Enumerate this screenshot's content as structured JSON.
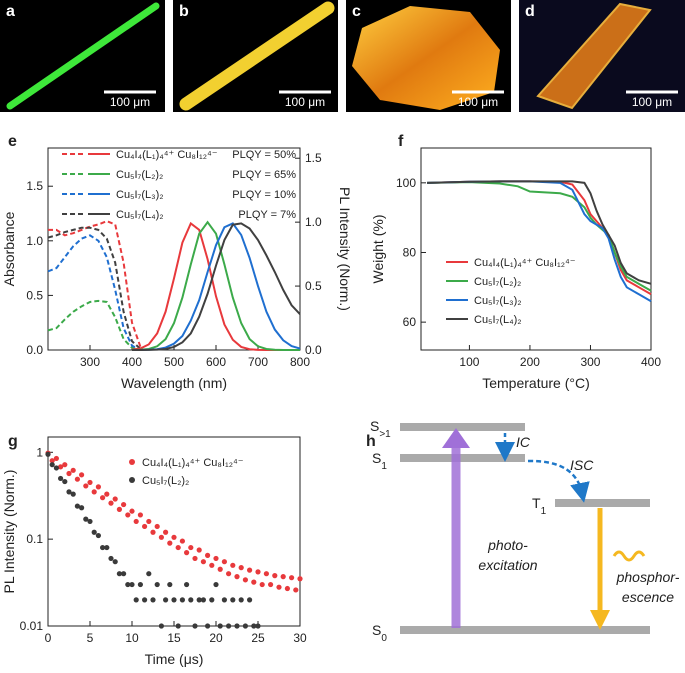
{
  "images": [
    {
      "label": "a",
      "scale_bar": "100 μm"
    },
    {
      "label": "b",
      "scale_bar": "100 μm"
    },
    {
      "label": "c",
      "scale_bar": "100 μm"
    },
    {
      "label": "d",
      "scale_bar": "100 μm"
    }
  ],
  "chart_data": [
    {
      "type": "line",
      "label": "e",
      "xlabel": "Wavelength (nm)",
      "ylabel": "Absorbance",
      "y2label": "PL Intensity (Norm.)",
      "xlim": [
        200,
        800
      ],
      "xticks": [
        300,
        400,
        500,
        600,
        700,
        800
      ],
      "ylim": [
        0,
        1.85
      ],
      "yticks": [
        {
          "value": 0,
          "label": "0.0"
        },
        0.5,
        {
          "value": 1,
          "label": "1.0"
        },
        1.5
      ],
      "y2lim": [
        0,
        1.58
      ],
      "y2ticks": [
        {
          "value": 0,
          "label": "0.0"
        },
        0.5,
        {
          "value": 1,
          "label": "1.0"
        },
        1.5
      ],
      "annotations": [
        "PLQY = 50%",
        "PLQY = 65%",
        "PLQY = 10%",
        "PLQY = 7%"
      ],
      "series": [
        {
          "name": "Cu₄I₄(L₁)₄⁴⁺ Cu₈I₁₂⁴⁻",
          "color": "#e8393c",
          "linestyle": "dashed",
          "x": [
            200,
            220,
            240,
            260,
            280,
            300,
            320,
            340,
            360,
            380,
            400,
            420
          ],
          "values": [
            1.1,
            1.1,
            1.05,
            1.07,
            1.1,
            1.13,
            1.15,
            1.18,
            1.15,
            0.8,
            0.25,
            0.03
          ]
        },
        {
          "name": "Cu₅I₇(L₂)₂",
          "color": "#3caa4a",
          "linestyle": "dashed",
          "x": [
            200,
            220,
            240,
            260,
            280,
            300,
            320,
            340,
            360,
            380,
            400,
            420
          ],
          "values": [
            0.18,
            0.2,
            0.28,
            0.35,
            0.4,
            0.44,
            0.45,
            0.44,
            0.3,
            0.1,
            0.02,
            0.0
          ]
        },
        {
          "name": "Cu₅I₇(L₃)₂",
          "color": "#1f6fd0",
          "linestyle": "dashed",
          "x": [
            200,
            220,
            240,
            260,
            280,
            300,
            320,
            340,
            360,
            380,
            400,
            420
          ],
          "values": [
            0.72,
            0.75,
            0.85,
            0.95,
            1.02,
            1.05,
            1.0,
            0.85,
            0.55,
            0.2,
            0.04,
            0.0
          ]
        },
        {
          "name": "Cu₅I₇(L₄)₂",
          "color": "#404040",
          "linestyle": "dashed",
          "x": [
            200,
            220,
            240,
            260,
            280,
            300,
            320,
            340,
            360,
            380,
            400,
            420
          ],
          "values": [
            1.03,
            1.05,
            1.08,
            1.1,
            1.12,
            1.12,
            1.1,
            1.02,
            0.8,
            0.35,
            0.08,
            0.01
          ]
        },
        {
          "color": "#e8393c",
          "linestyle": "solid",
          "axis": "y2",
          "x": [
            400,
            420,
            440,
            460,
            480,
            500,
            520,
            540,
            560,
            580,
            600,
            620,
            640,
            660,
            680,
            700,
            720,
            740,
            760,
            780,
            800
          ],
          "values": [
            0.003,
            0.012,
            0.044,
            0.13,
            0.3,
            0.56,
            0.84,
            0.99,
            0.94,
            0.71,
            0.42,
            0.2,
            0.08,
            0.024,
            0.006,
            0.001,
            0,
            0,
            0,
            0,
            0
          ]
        },
        {
          "color": "#3caa4a",
          "linestyle": "solid",
          "axis": "y2",
          "x": [
            400,
            420,
            440,
            460,
            480,
            500,
            520,
            540,
            560,
            580,
            600,
            620,
            640,
            660,
            680,
            700,
            720,
            740,
            760,
            780,
            800
          ],
          "values": [
            0,
            0.002,
            0.008,
            0.029,
            0.085,
            0.21,
            0.41,
            0.67,
            0.91,
            1.0,
            0.91,
            0.67,
            0.41,
            0.21,
            0.085,
            0.029,
            0.008,
            0.002,
            0,
            0,
            0
          ]
        },
        {
          "color": "#1f6fd0",
          "linestyle": "solid",
          "axis": "y2",
          "x": [
            400,
            420,
            440,
            460,
            480,
            500,
            520,
            540,
            560,
            580,
            600,
            620,
            640,
            660,
            680,
            700,
            720,
            740,
            760,
            780,
            800
          ],
          "values": [
            0,
            0.0005,
            0.002,
            0.006,
            0.019,
            0.05,
            0.11,
            0.23,
            0.39,
            0.61,
            0.82,
            0.96,
            0.99,
            0.9,
            0.72,
            0.5,
            0.3,
            0.16,
            0.076,
            0.031,
            0.011
          ]
        },
        {
          "color": "#404040",
          "linestyle": "solid",
          "axis": "y2",
          "x": [
            400,
            420,
            440,
            460,
            480,
            500,
            520,
            540,
            560,
            580,
            600,
            620,
            640,
            660,
            680,
            700,
            720,
            740,
            760,
            780,
            800
          ],
          "values": [
            0,
            0,
            0.001,
            0.003,
            0.008,
            0.024,
            0.06,
            0.13,
            0.26,
            0.44,
            0.66,
            0.86,
            0.98,
            0.99,
            0.95,
            0.86,
            0.74,
            0.61,
            0.47,
            0.35,
            0.28
          ]
        }
      ]
    },
    {
      "type": "line",
      "label": "f",
      "xlabel": "Temperature (°C)",
      "ylabel": "Weight (%)",
      "xlim": [
        20,
        400
      ],
      "xticks": [
        100,
        200,
        300,
        400
      ],
      "ylim": [
        52,
        110
      ],
      "yticks": [
        60,
        80,
        100
      ],
      "x": [
        30,
        100,
        150,
        180,
        200,
        250,
        270,
        290,
        300,
        310,
        320,
        330,
        340,
        350,
        360,
        380,
        400
      ],
      "series": [
        {
          "name": "Cu₄I₄(L₁)₄⁴⁺ Cu₈I₁₂⁴⁻",
          "color": "#e8393c",
          "values": [
            100.0,
            100.3,
            100.4,
            100.4,
            100.4,
            100.3,
            99.5,
            95,
            91,
            89,
            87,
            85,
            80,
            75,
            72,
            70,
            68
          ]
        },
        {
          "name": "Cu₅I₇(L₂)₂",
          "color": "#3caa4a",
          "values": [
            100.0,
            100.2,
            99.8,
            99,
            97.5,
            97,
            96,
            93,
            90,
            88,
            86.5,
            85,
            80,
            76,
            73,
            71,
            69
          ]
        },
        {
          "name": "Cu₅I₇(L₃)₂",
          "color": "#1f6fd0",
          "values": [
            100,
            100.3,
            100.4,
            100.4,
            100.4,
            100,
            98,
            91,
            89,
            88,
            87,
            84,
            78,
            73,
            70,
            68,
            66
          ]
        },
        {
          "name": "Cu₅I₇(L₄)₂",
          "color": "#404040",
          "values": [
            100,
            100.3,
            100.4,
            100.4,
            100.4,
            100.4,
            100.4,
            100,
            97,
            92,
            88,
            85,
            82,
            77,
            74,
            72,
            71
          ]
        }
      ]
    },
    {
      "type": "scatter",
      "label": "g",
      "xlabel": "Time (μs)",
      "ylabel": "PL Intensity (Norm.)",
      "yscale": "log",
      "xlim": [
        0,
        30
      ],
      "xticks": [
        0,
        5,
        10,
        15,
        20,
        25,
        30
      ],
      "ylim": [
        0.01,
        1.5
      ],
      "yticks": [
        0.01,
        0.1,
        1
      ],
      "series": [
        {
          "name": "Cu₄I₄(L₁)₄⁴⁺ Cu₈I₁₂⁴⁻",
          "color": "#e8393c",
          "x": [
            0,
            0.5,
            1,
            1.5,
            2,
            2.5,
            3,
            3.5,
            4,
            4.5,
            5,
            5.5,
            6,
            6.5,
            7,
            7.5,
            8,
            8.5,
            9,
            9.5,
            10,
            10.5,
            11,
            11.5,
            12,
            12.5,
            13,
            13.5,
            14,
            14.5,
            15,
            15.5,
            16,
            16.5,
            17,
            17.5,
            18,
            18.5,
            19,
            19.5,
            20,
            20.5,
            21,
            21.5,
            22,
            22.5,
            23,
            23.5,
            24,
            24.5,
            25,
            25.5,
            26,
            26.5,
            27,
            27.5,
            28,
            28.5,
            29,
            29.5,
            30
          ],
          "values": [
            0.98,
            0.8,
            0.85,
            0.68,
            0.72,
            0.57,
            0.62,
            0.49,
            0.55,
            0.41,
            0.45,
            0.35,
            0.4,
            0.3,
            0.33,
            0.26,
            0.29,
            0.22,
            0.25,
            0.19,
            0.21,
            0.16,
            0.19,
            0.14,
            0.16,
            0.12,
            0.14,
            0.105,
            0.12,
            0.09,
            0.105,
            0.08,
            0.095,
            0.07,
            0.08,
            0.06,
            0.075,
            0.055,
            0.065,
            0.05,
            0.06,
            0.045,
            0.055,
            0.04,
            0.05,
            0.037,
            0.047,
            0.034,
            0.044,
            0.032,
            0.042,
            0.03,
            0.04,
            0.03,
            0.038,
            0.028,
            0.037,
            0.027,
            0.036,
            0.026,
            0.035
          ]
        },
        {
          "name": "Cu₅I₇(L₂)₂",
          "color": "#3a3a3a",
          "x": [
            0,
            0.5,
            1,
            1.5,
            2,
            2.5,
            3,
            3.5,
            4,
            4.5,
            5,
            5.5,
            6,
            6.5,
            7,
            7.5,
            8,
            8.5,
            9,
            9.5,
            10,
            10.5,
            11,
            11.5,
            12,
            12.5,
            13,
            13.5,
            14,
            14.5,
            15,
            15.5,
            16,
            16.5,
            17,
            17.5,
            18,
            18.5,
            19,
            19.5,
            20,
            20.5,
            21,
            21.5,
            22,
            22.5,
            23,
            23.5,
            24,
            24.5,
            25
          ],
          "values": [
            0.95,
            0.72,
            0.66,
            0.5,
            0.46,
            0.35,
            0.33,
            0.24,
            0.23,
            0.17,
            0.16,
            0.12,
            0.11,
            0.08,
            0.08,
            0.06,
            0.055,
            0.04,
            0.04,
            0.03,
            0.03,
            0.02,
            0.03,
            0.02,
            0.04,
            0.02,
            0.03,
            0.01,
            0.02,
            0.03,
            0.02,
            0.01,
            0.02,
            0.03,
            0.02,
            0.01,
            0.02,
            0.02,
            0.01,
            0.02,
            0.03,
            0.01,
            0.02,
            0.01,
            0.02,
            0.01,
            0.02,
            0.01,
            0.02,
            0.01,
            0.01
          ]
        }
      ]
    }
  ],
  "diagram": {
    "label": "h",
    "levels": [
      {
        "text": "S",
        "sub": ">1"
      },
      {
        "text": "S",
        "sub": "1"
      },
      {
        "text": "T",
        "sub": "1"
      },
      {
        "text": "S",
        "sub": "0"
      }
    ],
    "ic": "IC",
    "isc": "ISC",
    "excitation": [
      "photo-",
      "excitation"
    ],
    "emission": [
      "phosphor-",
      "escence"
    ]
  }
}
